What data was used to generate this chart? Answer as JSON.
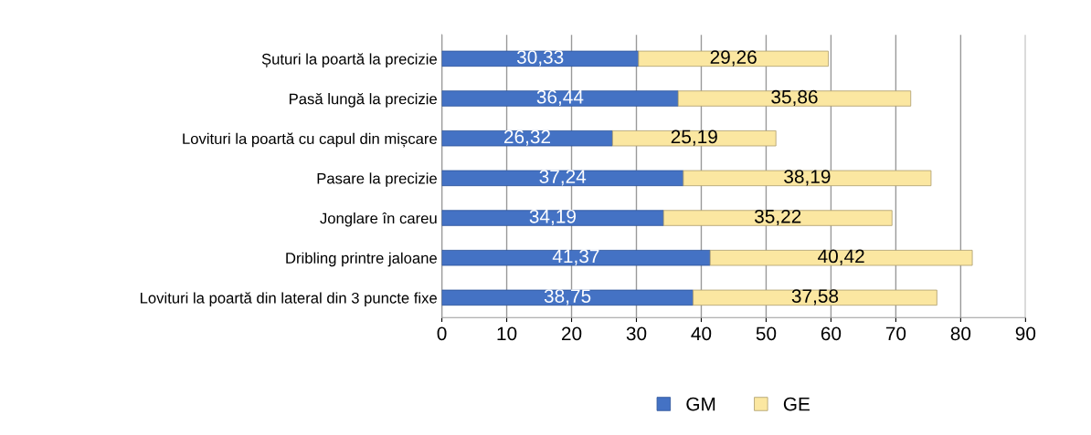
{
  "chart_data": {
    "type": "bar",
    "orientation": "horizontal",
    "stacked": true,
    "categories": [
      "Șuturi la poartă la precizie",
      "Pasă lungă la precizie",
      "Lovituri la poartă cu capul din mișcare",
      "Pasare la precizie",
      "Jonglare în careu",
      "Dribling printre jaloane",
      "Lovituri la poartă din lateral din 3 puncte fixe"
    ],
    "series": [
      {
        "name": "GM",
        "color": "#4472c4",
        "values": [
          30.33,
          36.44,
          26.32,
          37.24,
          34.19,
          41.37,
          38.75
        ],
        "value_labels": [
          "30,33",
          "36,44",
          "26,32",
          "37,24",
          "34,19",
          "41,37",
          "38,75"
        ]
      },
      {
        "name": "GE",
        "color": "#fbe7a1",
        "values": [
          29.26,
          35.86,
          25.19,
          38.19,
          35.22,
          40.42,
          37.58
        ],
        "value_labels": [
          "29,26",
          "35,86",
          "25,19",
          "38,19",
          "35,22",
          "40,42",
          "37,58"
        ]
      }
    ],
    "xlim": [
      0,
      90
    ],
    "xticks": [
      0,
      10,
      20,
      30,
      40,
      50,
      60,
      70,
      80,
      90
    ],
    "grid": "x",
    "legend": "bottom"
  }
}
